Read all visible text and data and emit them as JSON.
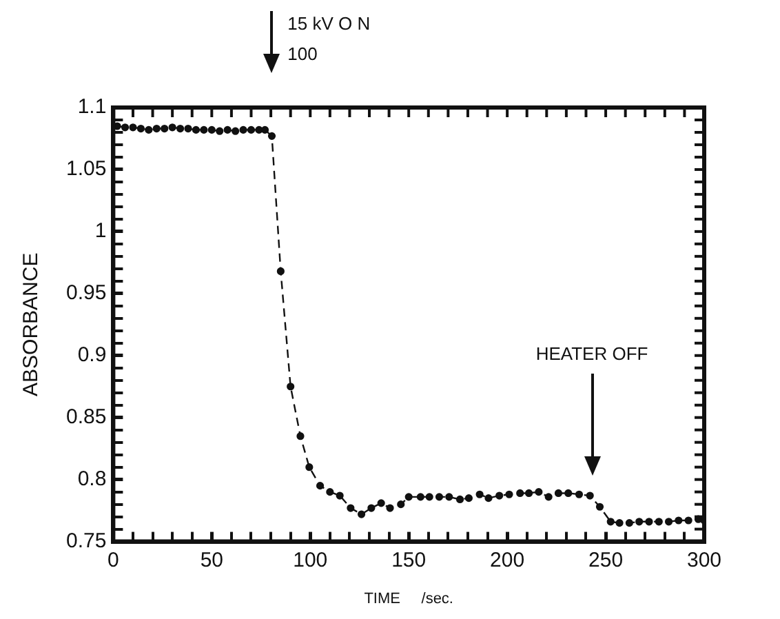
{
  "chart_data": {
    "type": "line",
    "xlabel": "TIME     /sec.",
    "ylabel": "ABSORBANCE",
    "x": [
      2,
      6,
      10,
      14,
      18,
      22,
      26,
      30,
      34,
      38,
      42,
      46,
      50,
      54,
      58,
      62,
      66,
      70,
      74,
      77,
      80.5,
      85,
      90,
      95,
      99.5,
      105,
      110,
      115,
      120.5,
      126,
      131,
      136,
      140.5,
      146,
      150,
      156,
      160.5,
      165.5,
      170.5,
      176,
      180.5,
      186,
      190.5,
      196,
      201,
      206.5,
      211,
      216,
      221,
      226,
      231,
      236.5,
      242,
      247,
      252.5,
      257,
      262,
      267,
      272,
      277,
      282,
      287,
      292,
      297,
      300
    ],
    "series": [
      {
        "color": "#111111",
        "values": [
          1.085,
          1.084,
          1.084,
          1.083,
          1.082,
          1.083,
          1.083,
          1.084,
          1.083,
          1.083,
          1.082,
          1.082,
          1.082,
          1.081,
          1.082,
          1.081,
          1.082,
          1.082,
          1.082,
          1.082,
          1.077,
          0.968,
          0.875,
          0.835,
          0.81,
          0.795,
          0.79,
          0.787,
          0.777,
          0.772,
          0.777,
          0.781,
          0.777,
          0.78,
          0.786,
          0.786,
          0.786,
          0.786,
          0.786,
          0.784,
          0.785,
          0.788,
          0.785,
          0.787,
          0.788,
          0.789,
          0.789,
          0.79,
          0.786,
          0.789,
          0.789,
          0.788,
          0.787,
          0.778,
          0.766,
          0.765,
          0.765,
          0.766,
          0.766,
          0.766,
          0.766,
          0.767,
          0.767,
          0.768,
          0.767
        ]
      }
    ],
    "xlim": [
      0,
      300
    ],
    "xticks": [
      0,
      {
        "value": 10,
        "label": null
      },
      {
        "value": 20,
        "label": null
      },
      {
        "value": 30,
        "label": null
      },
      {
        "value": 40,
        "label": null
      },
      50,
      {
        "value": 60,
        "label": null
      },
      {
        "value": 70,
        "label": null
      },
      {
        "value": 80,
        "label": null
      },
      {
        "value": 90,
        "label": null
      },
      100,
      {
        "value": 110,
        "label": null
      },
      {
        "value": 120,
        "label": null
      },
      {
        "value": 130,
        "label": null
      },
      {
        "value": 140,
        "label": null
      },
      150,
      {
        "value": 160,
        "label": null
      },
      {
        "value": 170,
        "label": null
      },
      {
        "value": 180,
        "label": null
      },
      {
        "value": 190,
        "label": null
      },
      200,
      {
        "value": 210,
        "label": null
      },
      {
        "value": 220,
        "label": null
      },
      {
        "value": 230,
        "label": null
      },
      {
        "value": 240,
        "label": null
      },
      250,
      {
        "value": 260,
        "label": null
      },
      {
        "value": 270,
        "label": null
      },
      {
        "value": 280,
        "label": null
      },
      {
        "value": 290,
        "label": null
      },
      300
    ],
    "ylim": [
      0.75,
      1.1
    ],
    "yticks": [
      0.75,
      {
        "value": 0.76,
        "label": null
      },
      {
        "value": 0.77,
        "label": null
      },
      {
        "value": 0.78,
        "label": null
      },
      {
        "value": 0.79,
        "label": null
      },
      0.8,
      {
        "value": 0.81,
        "label": null
      },
      {
        "value": 0.82,
        "label": null
      },
      {
        "value": 0.83,
        "label": null
      },
      {
        "value": 0.84,
        "label": null
      },
      0.85,
      {
        "value": 0.86,
        "label": null
      },
      {
        "value": 0.87,
        "label": null
      },
      {
        "value": 0.88,
        "label": null
      },
      {
        "value": 0.89,
        "label": null
      },
      0.9,
      {
        "value": 0.91,
        "label": null
      },
      {
        "value": 0.92,
        "label": null
      },
      {
        "value": 0.93,
        "label": null
      },
      {
        "value": 0.94,
        "label": null
      },
      0.95,
      {
        "value": 0.96,
        "label": null
      },
      {
        "value": 0.97,
        "label": null
      },
      {
        "value": 0.98,
        "label": null
      },
      {
        "value": 0.99,
        "label": null
      },
      1,
      {
        "value": 1.01,
        "label": null
      },
      {
        "value": 1.02,
        "label": null
      },
      {
        "value": 1.03,
        "label": null
      },
      {
        "value": 1.04,
        "label": null
      },
      1.05,
      {
        "value": 1.06,
        "label": null
      },
      {
        "value": 1.07,
        "label": null
      },
      {
        "value": 1.08,
        "label": null
      },
      {
        "value": 1.09,
        "label": null
      },
      1.1
    ],
    "grid": false,
    "legend": false,
    "marker": "circle",
    "line_style": "dashed",
    "annotations": [
      "15 kV O N",
      "100",
      "HEATER OFF"
    ]
  }
}
